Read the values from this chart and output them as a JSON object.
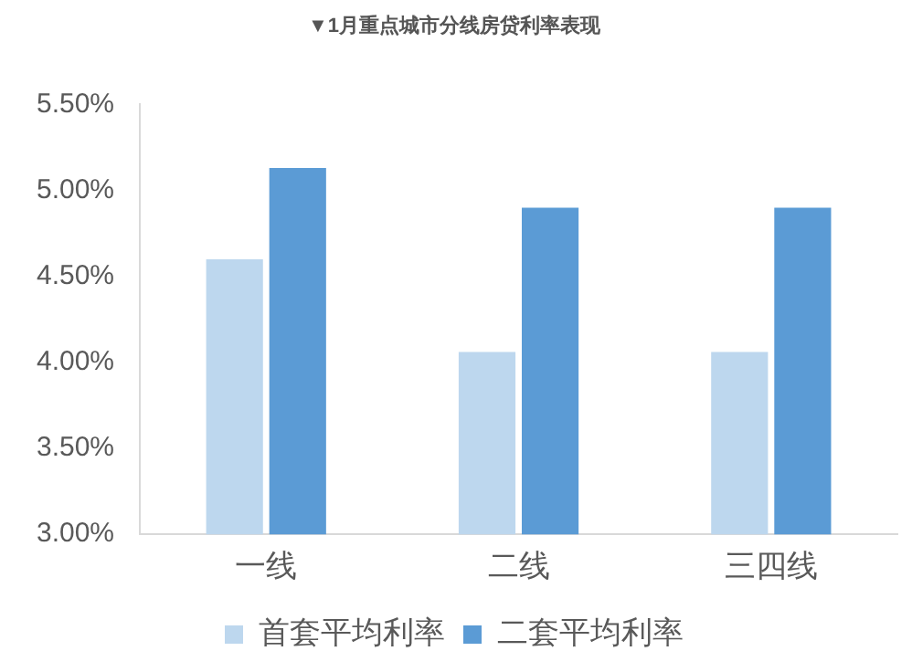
{
  "chart_data": {
    "type": "bar",
    "title": "▼1月重点城市分线房贷利率表现",
    "categories": [
      "一线",
      "二线",
      "三四线"
    ],
    "series": [
      {
        "name": "首套平均利率",
        "color": "#bdd7ee",
        "values": [
          4.6,
          4.06,
          4.06
        ]
      },
      {
        "name": "二套平均利率",
        "color": "#5b9bd5",
        "values": [
          5.13,
          4.9,
          4.9
        ]
      }
    ],
    "ylim": [
      3,
      5.5
    ],
    "yticks": [
      {
        "value": 3,
        "label": "3.00%"
      },
      {
        "value": 3.5,
        "label": "3.50%"
      },
      {
        "value": 4,
        "label": "4.00%"
      },
      {
        "value": 4.5,
        "label": "4.50%"
      },
      {
        "value": 5,
        "label": "5.00%"
      },
      {
        "value": 5.5,
        "label": "5.50%"
      }
    ],
    "grid": false,
    "legend": "bottom"
  }
}
